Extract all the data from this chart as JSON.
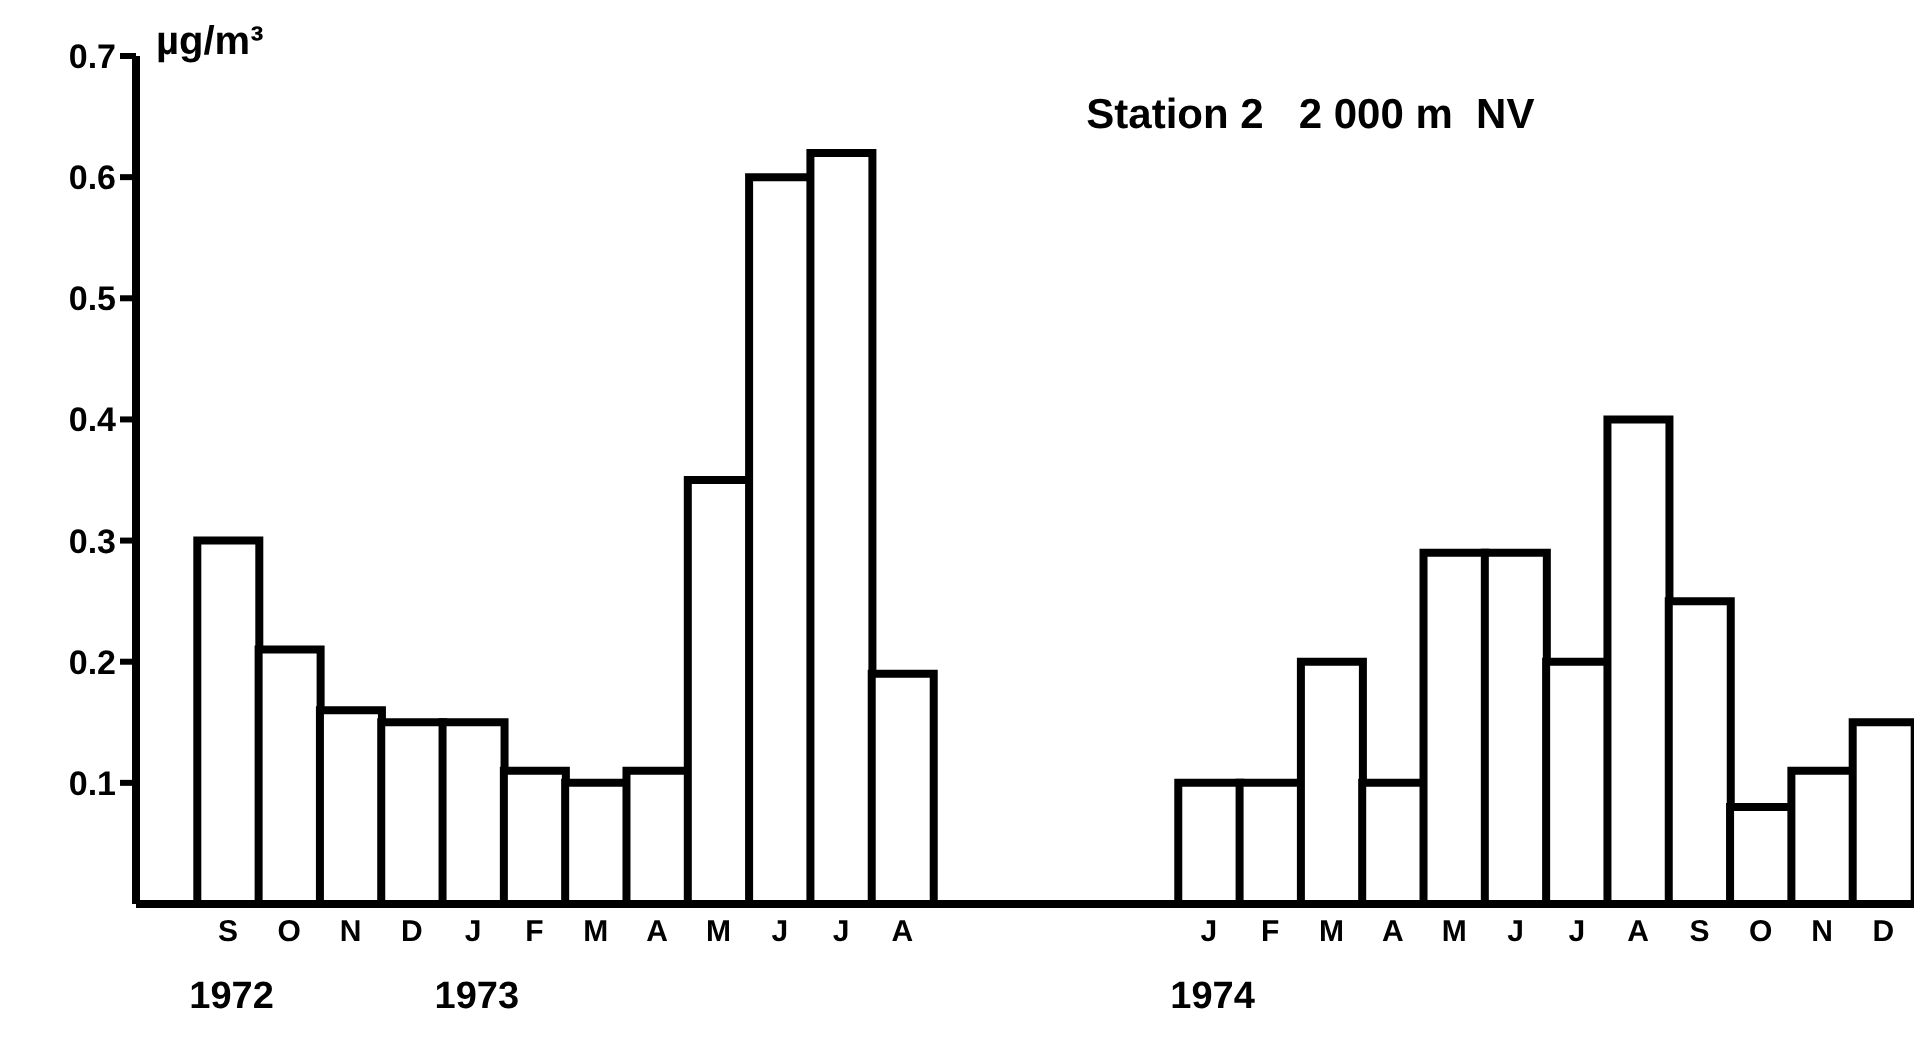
{
  "chart_data": {
    "type": "bar",
    "title": "Station 2   2 000 m  NV",
    "ylabel": "µg/m³",
    "categories": [
      null,
      "S",
      "O",
      "N",
      "D",
      "J",
      "F",
      "M",
      "A",
      "M",
      "J",
      "J",
      "A",
      null,
      null,
      null,
      null,
      "J",
      "F",
      "M",
      "A",
      "M",
      "J",
      "J",
      "A",
      "S",
      "O",
      "N",
      "D"
    ],
    "values": [
      null,
      0.3,
      0.21,
      0.16,
      0.15,
      0.15,
      0.11,
      0.1,
      0.11,
      0.35,
      0.6,
      0.62,
      0.19,
      null,
      null,
      null,
      null,
      0.1,
      0.1,
      0.2,
      0.1,
      0.29,
      0.29,
      0.2,
      0.4,
      0.25,
      0.08,
      0.11,
      0.15
    ],
    "color": "#000000",
    "ylim": [
      0,
      0.7
    ],
    "yticks": [
      0.1,
      0.2,
      0.3,
      0.4,
      0.5,
      0.6,
      0.7
    ],
    "annotations": [
      "1972",
      "1973",
      "1974"
    ],
    "grid": false,
    "legend": false
  }
}
